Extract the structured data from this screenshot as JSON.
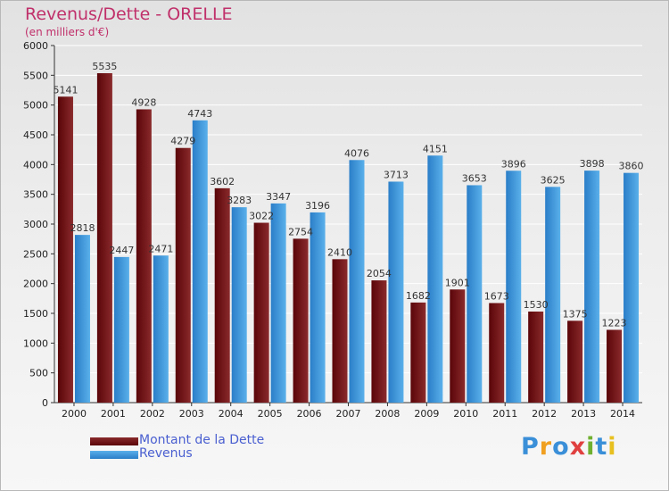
{
  "header": {
    "title": "Revenus/Dette - ORELLE",
    "subtitle": "(en milliers d'€)"
  },
  "legend": [
    {
      "label": "Montant de la Dette",
      "color": "#6e1016"
    },
    {
      "label": "Revenus",
      "color": "#3a9be0"
    }
  ],
  "logo": {
    "letters": [
      "P",
      "r",
      "o",
      "x",
      "i",
      "t",
      "i"
    ],
    "colors": [
      "#3a8fd8",
      "#f0a020",
      "#3a8fd8",
      "#e04040",
      "#70b030",
      "#3a8fd8",
      "#e8c020"
    ]
  },
  "chart_data": {
    "type": "bar",
    "categories": [
      "2000",
      "2001",
      "2002",
      "2003",
      "2004",
      "2005",
      "2006",
      "2007",
      "2008",
      "2009",
      "2010",
      "2011",
      "2012",
      "2013",
      "2014"
    ],
    "series": [
      {
        "name": "Montant de la Dette",
        "values": [
          5141,
          5535,
          4928,
          4279,
          3602,
          3022,
          2754,
          2410,
          2054,
          1682,
          1901,
          1673,
          1530,
          1375,
          1223
        ],
        "labels": [
          "5141",
          "5535",
          "4928",
          "4279",
          "3602",
          "3022",
          "2754",
          "2410",
          "2054",
          "1682",
          "1901",
          "1673",
          "1530",
          "1375",
          "1223"
        ],
        "color_dark": "#5a0509",
        "color_light": "#8a2a2c"
      },
      {
        "name": "Revenus",
        "values": [
          2818,
          2447,
          2471,
          4743,
          3283,
          3347,
          3196,
          4076,
          3713,
          4151,
          3653,
          3896,
          3625,
          3898,
          3860
        ],
        "labels": [
          "2818",
          "2447",
          "2471",
          "4743",
          "3283",
          "3347",
          "3196",
          "4076",
          "3713",
          "4151",
          "3653",
          "3896",
          "3625",
          "3898",
          "3860"
        ],
        "color_dark": "#2a7ec8",
        "color_light": "#5ab0ea"
      }
    ],
    "ylim": [
      0,
      6000
    ],
    "yticks": [
      0,
      500,
      1000,
      1500,
      2000,
      2500,
      3000,
      3500,
      4000,
      4500,
      5000,
      5500,
      6000
    ],
    "grid": true,
    "legend_position": "bottom-left"
  }
}
